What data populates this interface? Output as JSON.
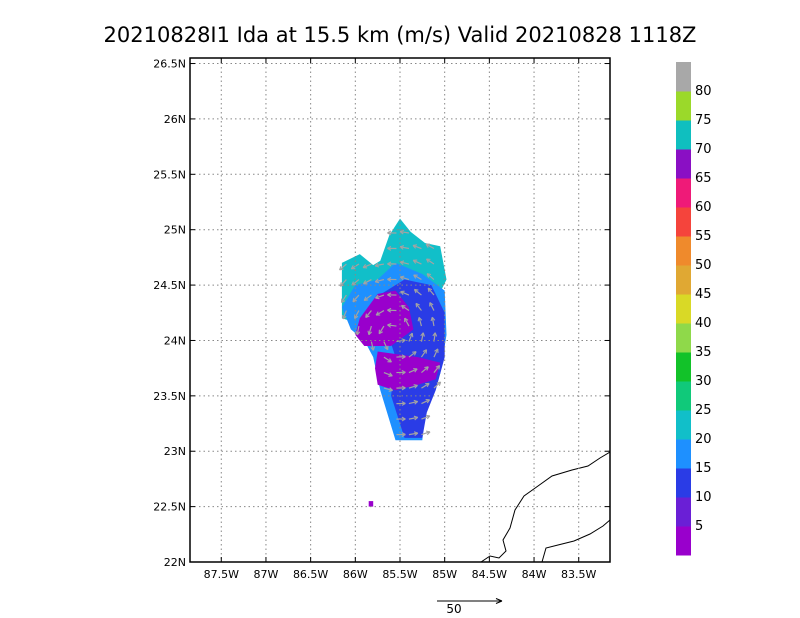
{
  "chart_data": {
    "type": "heatmap",
    "title": "20210828I1 Ida at 15.5 km (m/s) Valid 20210828 1118Z",
    "x_ticks": [
      "87.5W",
      "87W",
      "86.5W",
      "86W",
      "85.5W",
      "85W",
      "84.5W",
      "84W",
      "83.5W"
    ],
    "y_ticks": [
      "22N",
      "22.5N",
      "23N",
      "23.5N",
      "24N",
      "24.5N",
      "25N",
      "25.5N",
      "26N",
      "26.5N"
    ],
    "x_range_lon": [
      -87.85,
      -83.15
    ],
    "y_range_lat": [
      22.0,
      26.55
    ],
    "grid": true,
    "colorbar": {
      "labels": [
        "5",
        "10",
        "15",
        "20",
        "25",
        "30",
        "35",
        "40",
        "45",
        "50",
        "55",
        "60",
        "65",
        "70",
        "75",
        "80"
      ],
      "colors": [
        "#9900cc",
        "#6a1fd6",
        "#2a3ce6",
        "#1e90ff",
        "#11bfc9",
        "#10c97a",
        "#12c229",
        "#8fd94a",
        "#d9d926",
        "#e0a833",
        "#ef8a2c",
        "#f5443c",
        "#ef1a78",
        "#8a0fc4",
        "#0fbfbf",
        "#9bd92a",
        "#a8a8a8"
      ]
    },
    "reference_vector_label": "50",
    "wind_field_regions": [
      {
        "speed_class": "20-25",
        "polygon_lonlat": [
          [
            -86.15,
            24.2
          ],
          [
            -86.15,
            24.7
          ],
          [
            -85.95,
            24.78
          ],
          [
            -85.8,
            24.68
          ],
          [
            -85.72,
            24.72
          ],
          [
            -85.62,
            24.95
          ],
          [
            -85.5,
            25.1
          ],
          [
            -85.38,
            24.98
          ],
          [
            -85.22,
            24.88
          ],
          [
            -85.05,
            24.85
          ],
          [
            -84.98,
            24.55
          ],
          [
            -85.1,
            24.35
          ],
          [
            -85.4,
            24.4
          ],
          [
            -85.7,
            24.3
          ],
          [
            -85.95,
            24.15
          ]
        ]
      },
      {
        "speed_class": "15-20",
        "polygon_lonlat": [
          [
            -86.05,
            24.1
          ],
          [
            -86.15,
            24.3
          ],
          [
            -86.0,
            24.5
          ],
          [
            -85.75,
            24.55
          ],
          [
            -85.55,
            24.7
          ],
          [
            -85.25,
            24.6
          ],
          [
            -85.0,
            24.45
          ],
          [
            -84.98,
            24.05
          ],
          [
            -85.05,
            23.7
          ],
          [
            -85.2,
            23.5
          ],
          [
            -85.25,
            23.1
          ],
          [
            -85.55,
            23.1
          ],
          [
            -85.72,
            23.55
          ],
          [
            -85.8,
            23.85
          ],
          [
            -85.9,
            24.0
          ]
        ]
      },
      {
        "speed_class": "10-15",
        "polygon_lonlat": [
          [
            -85.75,
            24.4
          ],
          [
            -85.45,
            24.55
          ],
          [
            -85.15,
            24.5
          ],
          [
            -85.0,
            24.25
          ],
          [
            -85.0,
            23.85
          ],
          [
            -85.1,
            23.55
          ],
          [
            -85.2,
            23.35
          ],
          [
            -85.25,
            23.12
          ],
          [
            -85.45,
            23.12
          ],
          [
            -85.6,
            23.5
          ],
          [
            -85.55,
            23.85
          ],
          [
            -85.65,
            24.1
          ]
        ]
      },
      {
        "speed_class": "0-5",
        "polygon_lonlat": [
          [
            -85.95,
            24.2
          ],
          [
            -85.75,
            24.42
          ],
          [
            -85.55,
            24.45
          ],
          [
            -85.4,
            24.3
          ],
          [
            -85.35,
            24.1
          ],
          [
            -85.6,
            23.95
          ],
          [
            -85.9,
            23.95
          ],
          [
            -86.0,
            24.05
          ]
        ]
      },
      {
        "speed_class": "0-5",
        "polygon_lonlat": [
          [
            -85.75,
            23.9
          ],
          [
            -85.3,
            23.85
          ],
          [
            -85.05,
            23.8
          ],
          [
            -85.1,
            23.65
          ],
          [
            -85.3,
            23.6
          ],
          [
            -85.55,
            23.55
          ],
          [
            -85.75,
            23.6
          ],
          [
            -85.78,
            23.75
          ]
        ]
      },
      {
        "speed_class": "0-5",
        "polygon_lonlat": [
          [
            -85.85,
            22.55
          ],
          [
            -85.8,
            22.55
          ],
          [
            -85.8,
            22.5
          ],
          [
            -85.85,
            22.5
          ]
        ]
      }
    ]
  }
}
